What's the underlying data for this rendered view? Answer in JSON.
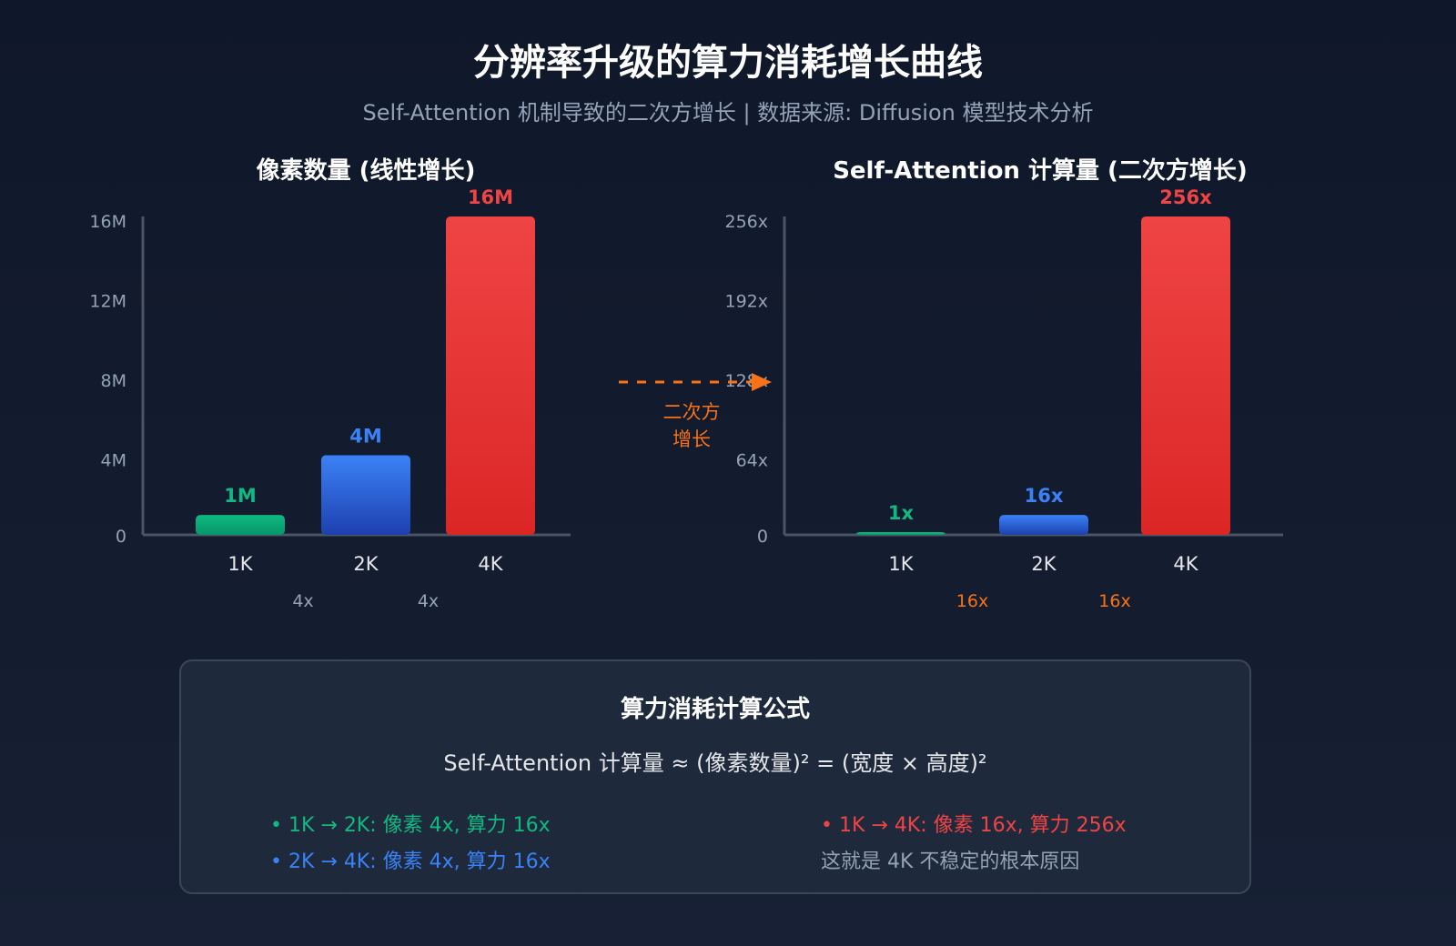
{
  "title": "分辨率升级的算力消耗增长曲线",
  "subtitle": "Self-Attention 机制导致的二次方增长 | 数据来源: Diffusion 模型技术分析",
  "arrow_label": [
    "二次方",
    "增长"
  ],
  "colors": {
    "green": "#10b981",
    "blue": "#3b82f6",
    "red": "#ef4444",
    "orange": "#f97316",
    "axis": "#4b5563",
    "tick": "#94a3b8"
  },
  "chart_data": [
    {
      "type": "bar",
      "title": "像素数量 (线性增长)",
      "categories": [
        "1K",
        "2K",
        "4K"
      ],
      "values": [
        1,
        4,
        16
      ],
      "data_labels": [
        "1M",
        "4M",
        "16M"
      ],
      "ylim": [
        0,
        16
      ],
      "yticks": [
        0,
        4,
        8,
        12,
        16
      ],
      "ytick_labels": [
        "0",
        "4M",
        "8M",
        "12M",
        "16M"
      ],
      "ratio_labels": [
        "4x",
        "4x"
      ],
      "grid": false
    },
    {
      "type": "bar",
      "title": "Self-Attention 计算量 (二次方增长)",
      "categories": [
        "1K",
        "2K",
        "4K"
      ],
      "values": [
        1,
        16,
        256
      ],
      "data_labels": [
        "1x",
        "16x",
        "256x"
      ],
      "ylim": [
        0,
        256
      ],
      "yticks": [
        0,
        64,
        128,
        192,
        256
      ],
      "ytick_labels": [
        "0",
        "64x",
        "128x",
        "192x",
        "256x"
      ],
      "ratio_labels": [
        "16x",
        "16x"
      ],
      "grid": false
    }
  ],
  "formula_box": {
    "title": "算力消耗计算公式",
    "formula": "Self-Attention 计算量 ≈ (像素数量)² = (宽度 × 高度)²",
    "notes": [
      {
        "text": "• 1K → 2K: 像素 4x, 算力 16x",
        "color": "#10b981"
      },
      {
        "text": "• 2K → 4K: 像素 4x, 算力 16x",
        "color": "#3b82f6"
      },
      {
        "text": "• 1K → 4K: 像素 16x, 算力 256x",
        "color": "#ef4444"
      },
      {
        "text": "这就是 4K 不稳定的根本原因",
        "color": "#94a3b8"
      }
    ]
  }
}
